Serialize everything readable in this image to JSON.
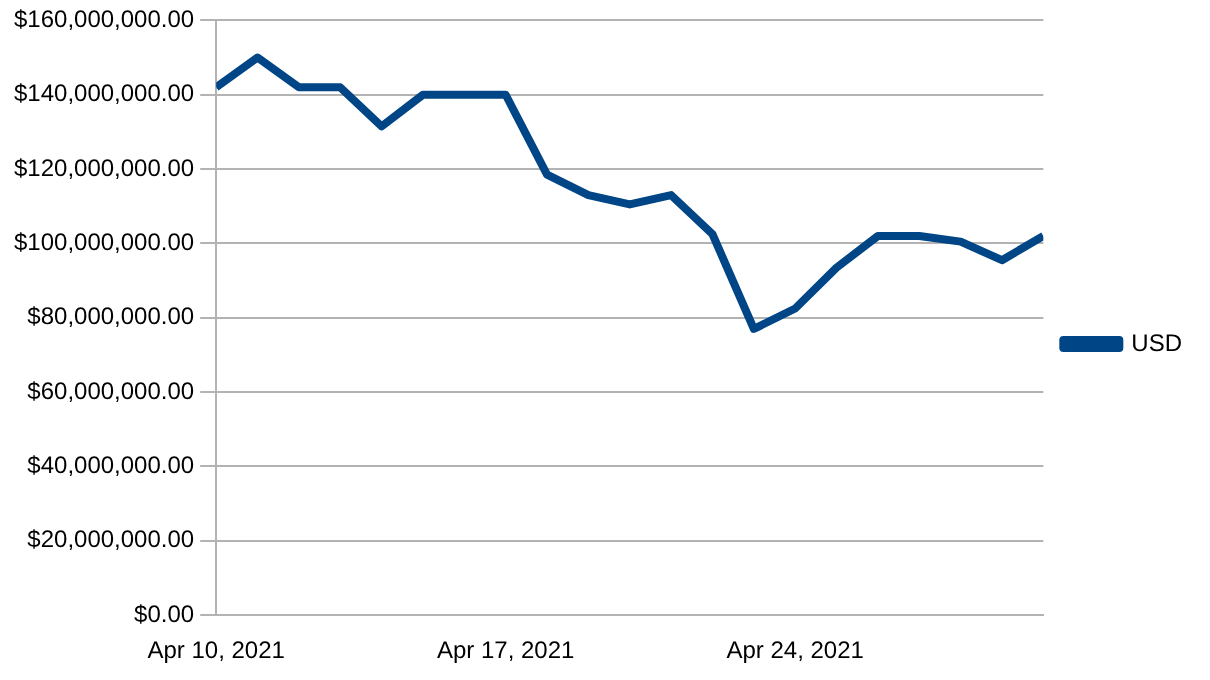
{
  "chart_data": {
    "type": "line",
    "x": [
      "2021-04-10",
      "2021-04-11",
      "2021-04-12",
      "2021-04-13",
      "2021-04-14",
      "2021-04-15",
      "2021-04-16",
      "2021-04-17",
      "2021-04-18",
      "2021-04-19",
      "2021-04-20",
      "2021-04-21",
      "2021-04-22",
      "2021-04-23",
      "2021-04-24",
      "2021-04-25",
      "2021-04-26",
      "2021-04-27",
      "2021-04-28",
      "2021-04-29",
      "2021-04-30"
    ],
    "series": [
      {
        "name": "USD",
        "color": "#004586",
        "values": [
          142000000,
          150000000,
          142000000,
          142000000,
          131500000,
          140000000,
          140000000,
          140000000,
          118500000,
          113000000,
          110500000,
          113000000,
          102500000,
          77000000,
          82500000,
          93500000,
          102000000,
          102000000,
          100500000,
          95500000,
          102000000
        ]
      }
    ],
    "xlim": [
      "2021-04-10",
      "2021-04-30"
    ],
    "xticks": [
      {
        "value": "2021-04-10",
        "label": "Apr 10, 2021"
      },
      {
        "value": "2021-04-17",
        "label": "Apr 17, 2021"
      },
      {
        "value": "2021-04-24",
        "label": "Apr 24, 2021"
      }
    ],
    "ylim": [
      0,
      160000000
    ],
    "yticks": [
      {
        "value": 0,
        "label": "$0.00"
      },
      {
        "value": 20000000,
        "label": "$20,000,000.00"
      },
      {
        "value": 40000000,
        "label": "$40,000,000.00"
      },
      {
        "value": 60000000,
        "label": "$60,000,000.00"
      },
      {
        "value": 80000000,
        "label": "$80,000,000.00"
      },
      {
        "value": 100000000,
        "label": "$100,000,000.00"
      },
      {
        "value": 120000000,
        "label": "$120,000,000.00"
      },
      {
        "value": 140000000,
        "label": "$140,000,000.00"
      },
      {
        "value": 160000000,
        "label": "$160,000,000.00"
      }
    ],
    "grid": "y",
    "legend": "right",
    "marker": "none",
    "line_style": "solid"
  }
}
